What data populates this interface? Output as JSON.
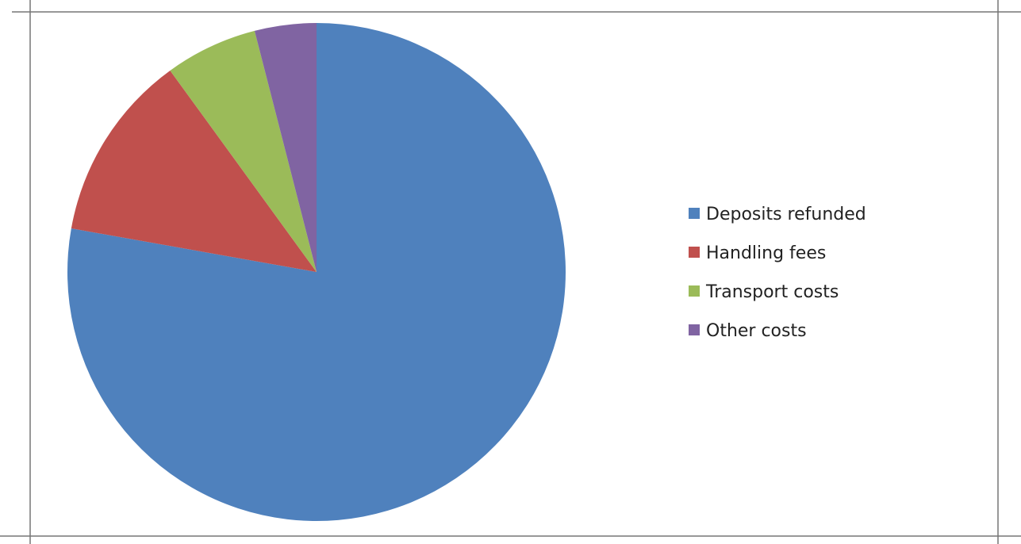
{
  "chart_data": {
    "type": "pie",
    "title": "",
    "categories": [
      "Deposits refunded",
      "Handling fees",
      "Transport costs",
      "Other costs"
    ],
    "values": [
      77.8,
      12.2,
      6.0,
      4.0
    ],
    "colors": [
      "#4F81BD",
      "#C0504D",
      "#9BBB59",
      "#8064A2"
    ],
    "start_angle": "12 o'clock",
    "direction": "clockwise",
    "legend_position": "right"
  }
}
